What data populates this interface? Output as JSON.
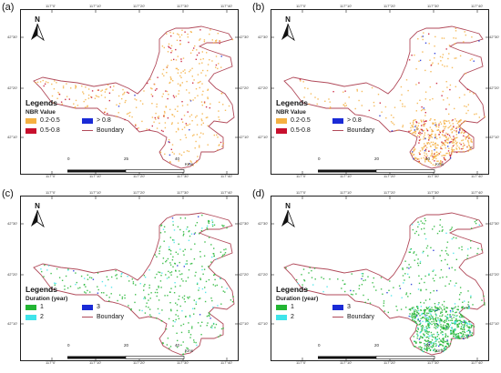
{
  "panels": [
    {
      "letter": "(a)",
      "legend": {
        "title": "Legends",
        "subtitle": "NBR Value",
        "items": [
          {
            "label": "0.2-0.5",
            "color": "#f5b042"
          },
          {
            "label": "> 0.8",
            "color": "#1a2bd6"
          },
          {
            "label": "0.5-0.8",
            "color": "#c8102e"
          },
          {
            "label": "Boundary",
            "color": "#b14a5a",
            "line": true
          }
        ]
      },
      "scale": {
        "labels": [
          "0",
          "25",
          "40"
        ],
        "unit": "Kms"
      }
    },
    {
      "letter": "(b)",
      "legend": {
        "title": "Legends",
        "subtitle": "NBR Value",
        "items": [
          {
            "label": "0.2-0.5",
            "color": "#f5b042"
          },
          {
            "label": "> 0.8",
            "color": "#1a2bd6"
          },
          {
            "label": "0.5-0.8",
            "color": "#c8102e"
          },
          {
            "label": "Boundary",
            "color": "#b14a5a",
            "line": true
          }
        ]
      },
      "scale": {
        "labels": [
          "0",
          "20",
          "40"
        ],
        "unit": "Kms"
      }
    },
    {
      "letter": "(c)",
      "legend": {
        "title": "Legends",
        "subtitle": "Duration (year)",
        "items": [
          {
            "label": "1",
            "color": "#22b533"
          },
          {
            "label": "3",
            "color": "#1a2bd6"
          },
          {
            "label": "2",
            "color": "#3fe4ea"
          },
          {
            "label": "Boundary",
            "color": "#b14a5a",
            "line": true
          }
        ]
      },
      "scale": {
        "labels": [
          "0",
          "20",
          "40"
        ],
        "unit": "Kms"
      }
    },
    {
      "letter": "(d)",
      "legend": {
        "title": "Legends",
        "subtitle": "Duration (year)",
        "items": [
          {
            "label": "1",
            "color": "#22b533"
          },
          {
            "label": "3",
            "color": "#1a2bd6"
          },
          {
            "label": "2",
            "color": "#3fe4ea"
          },
          {
            "label": "Boundary",
            "color": "#b14a5a",
            "line": true
          }
        ]
      },
      "scale": {
        "labels": [
          "0",
          "20",
          "40"
        ],
        "unit": "Kms"
      }
    }
  ],
  "north_label": "N",
  "lon_ticks": [
    "117°0'",
    "117°10'",
    "117°20'",
    "117°30'",
    "117°40'"
  ],
  "lat_ticks_left": [
    "42°30'",
    "42°20'",
    "42°10'"
  ],
  "lat_ticks_right": [
    "42°30'",
    "42°20'",
    "42°10'"
  ],
  "boundary_color": "#b14a5a",
  "pixel_density": [
    "low",
    "medium",
    "low",
    "high"
  ]
}
